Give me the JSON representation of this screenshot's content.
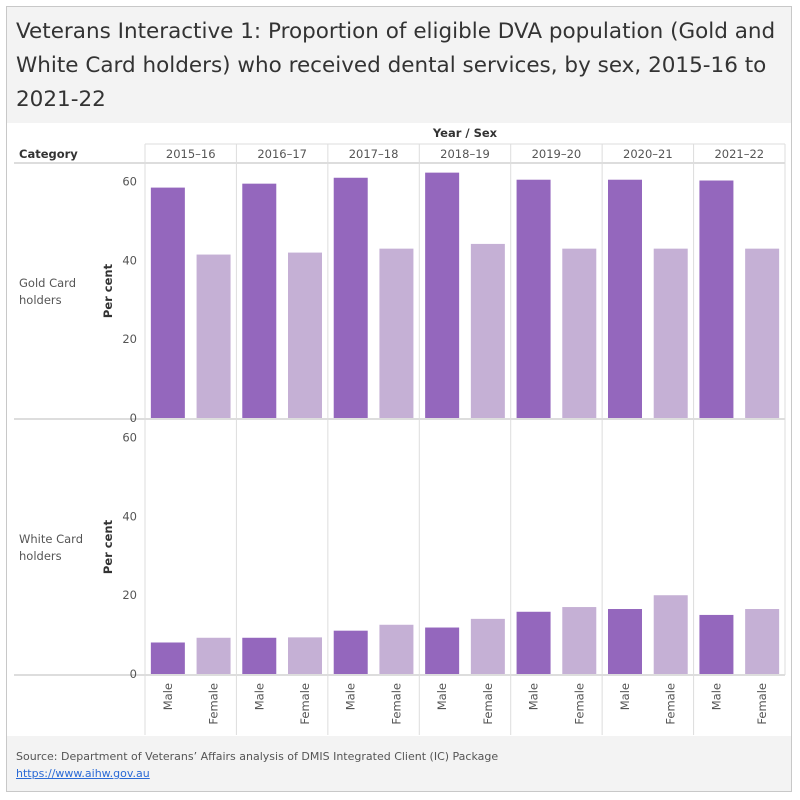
{
  "title": "Veterans Interactive 1: Proportion of eligible DVA population (Gold and White Card holders) who received dental services, by sex, 2015-16 to 2021-22",
  "header": {
    "columns_label": "Year / Sex",
    "row_label": "Category"
  },
  "source": "Source: Department of Veterans’ Affairs analysis of DMIS Integrated Client (IC) Package",
  "link": "https://www.aihw.gov.au",
  "colors": {
    "male": "#9467bd",
    "female": "#c5b0d5",
    "grid": "#dddddd",
    "axis": "#bbbbbb",
    "text": "#555555"
  },
  "chart_data": {
    "type": "bar",
    "years": [
      "2015–16",
      "2016–17",
      "2017–18",
      "2018–19",
      "2019–20",
      "2020–21",
      "2021–22"
    ],
    "sexes": [
      "Male",
      "Female"
    ],
    "ylabel": "Per cent",
    "ylim": [
      0,
      65
    ],
    "yticks": [
      0,
      20,
      40,
      60
    ],
    "panels": [
      {
        "category": "Gold Card holders",
        "series": [
          {
            "name": "Male",
            "values": [
              58.5,
              59.5,
              61,
              62.3,
              60.5,
              60.5,
              60.3
            ]
          },
          {
            "name": "Female",
            "values": [
              41.5,
              42,
              43,
              44.2,
              43,
              43,
              43
            ]
          }
        ]
      },
      {
        "category": "White Card holders",
        "series": [
          {
            "name": "Male",
            "values": [
              8,
              9.2,
              11,
              11.8,
              15.8,
              16.5,
              15
            ]
          },
          {
            "name": "Female",
            "values": [
              9.2,
              9.3,
              12.5,
              14,
              17,
              20,
              16.5
            ]
          }
        ]
      }
    ]
  }
}
